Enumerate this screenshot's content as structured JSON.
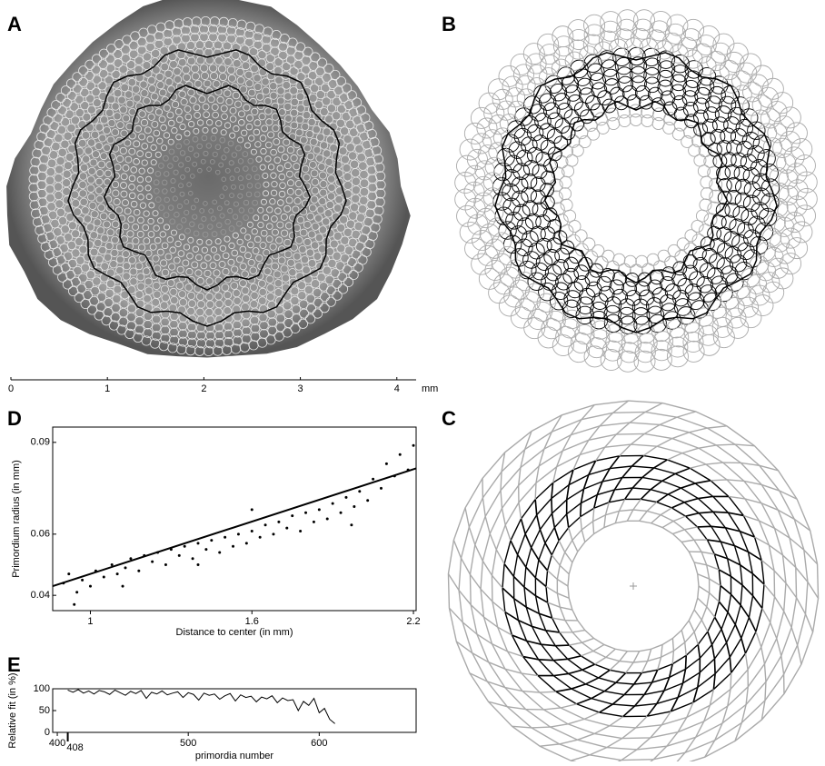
{
  "panel_labels": [
    "A",
    "B",
    "C",
    "D",
    "E"
  ],
  "scale_bar": {
    "xlim": [
      0,
      4.2
    ],
    "xticks": [
      0,
      1,
      2,
      3,
      4
    ],
    "unit": "mm"
  },
  "chart_data": [
    {
      "type": "scatter",
      "ylabel": "Primordium radius (in mm)",
      "xlabel": "Distance to center (in mm)",
      "xlim": [
        0.86,
        2.21
      ],
      "ylim": [
        0.035,
        0.095
      ],
      "xticks": [
        1,
        1.6,
        2.2
      ],
      "yticks": [
        0.04,
        0.06,
        0.09
      ],
      "series": [
        {
          "color": "#000000",
          "x": [
            0.9,
            0.92,
            0.95,
            0.97,
            1.0,
            1.02,
            1.05,
            1.08,
            1.1,
            1.13,
            1.15,
            1.18,
            1.2,
            1.23,
            1.25,
            1.28,
            1.3,
            1.33,
            1.35,
            1.38,
            1.4,
            1.43,
            1.45,
            1.48,
            1.5,
            1.53,
            1.55,
            1.58,
            1.6,
            1.63,
            1.65,
            1.68,
            1.7,
            1.73,
            1.75,
            1.78,
            1.8,
            1.83,
            1.85,
            1.88,
            1.9,
            1.93,
            1.95,
            1.98,
            2.0,
            2.03,
            2.05,
            2.08,
            2.1,
            2.13,
            2.15,
            2.18,
            2.2,
            1.12,
            0.94,
            1.6,
            1.4,
            1.97
          ],
          "values": [
            0.044,
            0.047,
            0.041,
            0.045,
            0.043,
            0.048,
            0.046,
            0.05,
            0.047,
            0.049,
            0.052,
            0.048,
            0.053,
            0.051,
            0.054,
            0.05,
            0.055,
            0.053,
            0.056,
            0.052,
            0.057,
            0.055,
            0.058,
            0.054,
            0.059,
            0.056,
            0.06,
            0.057,
            0.061,
            0.059,
            0.063,
            0.06,
            0.064,
            0.062,
            0.066,
            0.061,
            0.067,
            0.064,
            0.068,
            0.065,
            0.07,
            0.067,
            0.072,
            0.069,
            0.074,
            0.071,
            0.078,
            0.075,
            0.083,
            0.079,
            0.086,
            0.081,
            0.089,
            0.043,
            0.037,
            0.068,
            0.05,
            0.063
          ]
        }
      ],
      "fit": {
        "color": "#000000",
        "x": [
          0.86,
          2.21
        ],
        "values": [
          0.043,
          0.0815
        ]
      }
    },
    {
      "type": "line",
      "ylabel": "Relative fit (in %)",
      "xlabel": "primordia number",
      "xlim": [
        396.5,
        674
      ],
      "ylim": [
        0,
        100
      ],
      "xticks": [
        400,
        408,
        500,
        600
      ],
      "yticks": [
        0,
        50,
        100
      ],
      "series": [
        {
          "color": "#000000",
          "x": [
            408,
            412,
            416,
            420,
            424,
            428,
            432,
            436,
            440,
            444,
            448,
            452,
            456,
            460,
            464,
            468,
            472,
            476,
            480,
            484,
            488,
            492,
            496,
            500,
            504,
            508,
            512,
            516,
            520,
            524,
            528,
            532,
            536,
            540,
            544,
            548,
            552,
            556,
            560,
            564,
            568,
            572,
            576,
            580,
            584,
            588,
            592,
            596,
            600,
            604,
            608,
            612
          ],
          "values": [
            97,
            92,
            98,
            90,
            95,
            88,
            96,
            93,
            87,
            97,
            91,
            85,
            94,
            89,
            96,
            78,
            92,
            88,
            95,
            86,
            90,
            93,
            80,
            91,
            87,
            74,
            90,
            85,
            88,
            76,
            84,
            89,
            72,
            86,
            80,
            83,
            70,
            81,
            77,
            84,
            68,
            79,
            73,
            75,
            50,
            71,
            62,
            78,
            45,
            55,
            30,
            20
          ]
        }
      ]
    }
  ]
}
